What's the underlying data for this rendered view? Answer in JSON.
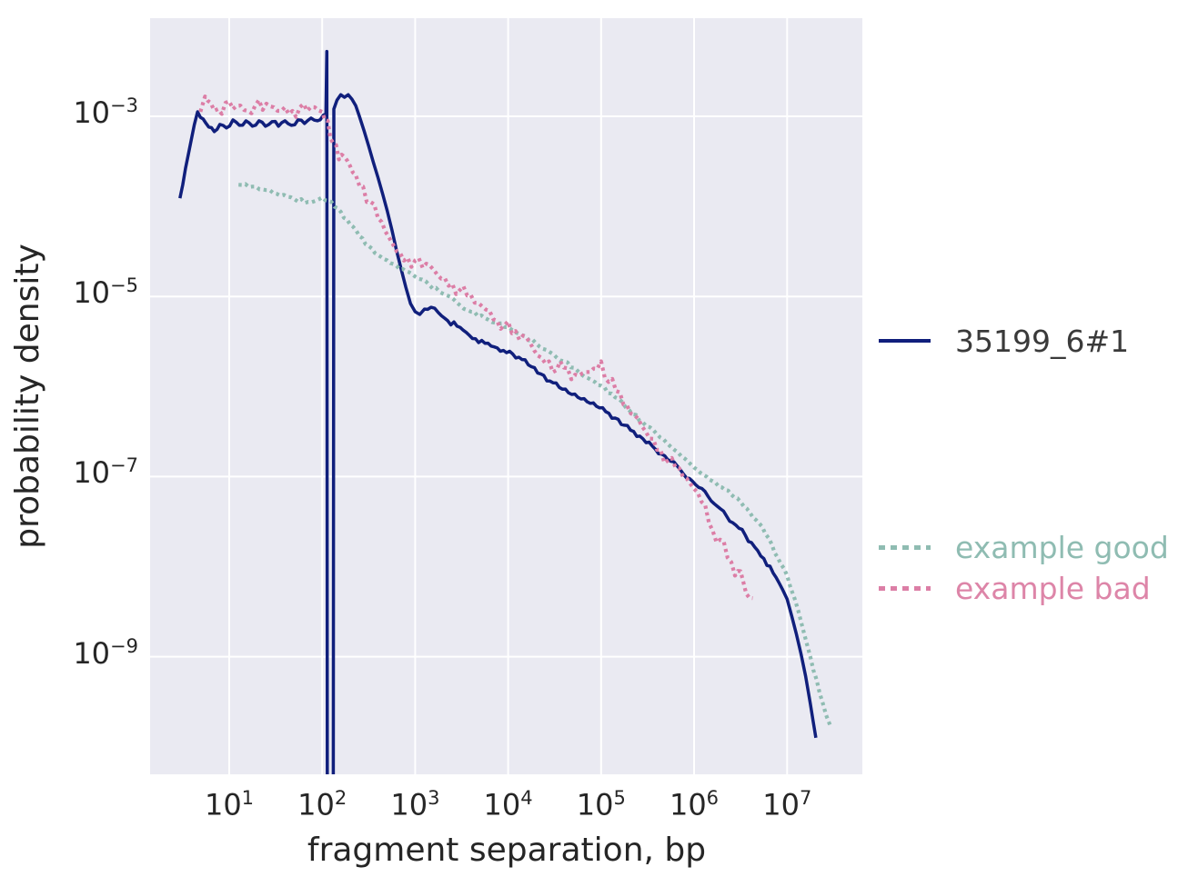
{
  "chart_data": {
    "type": "line",
    "title": "",
    "xlabel": "fragment separation, bp",
    "ylabel": "probability density",
    "x_scale": "log",
    "y_scale": "log",
    "xlim": [
      1.41,
      64500000
    ],
    "ylim": [
      4.95e-11,
      0.01228
    ],
    "grid": true,
    "grid_color": "#ffffff",
    "background_color": "#eaeaf2",
    "tick_color": "#262626",
    "tick_base": "10",
    "x_tick_exponents": [
      1,
      2,
      3,
      4,
      5,
      6,
      7
    ],
    "y_tick_exponents": [
      -3,
      -5,
      -7,
      -9
    ],
    "legend_position": "right",
    "series": [
      {
        "name": "35199_6#1",
        "color": "#101f7c",
        "legend_text_color": "#3a3a3a",
        "style": "solid",
        "line_width": 3.5,
        "noise_log10": 0.028,
        "points_log10": [
          [
            0.47,
            -3.91
          ],
          [
            0.53,
            -3.58
          ],
          [
            0.59,
            -3.27
          ],
          [
            0.66,
            -2.95
          ],
          [
            0.72,
            -3.03
          ],
          [
            0.78,
            -3.12
          ],
          [
            0.84,
            -3.17
          ],
          [
            0.9,
            -3.09
          ],
          [
            0.97,
            -3.13
          ],
          [
            1.04,
            -3.04
          ],
          [
            1.11,
            -3.1
          ],
          [
            1.18,
            -3.05
          ],
          [
            1.25,
            -3.11
          ],
          [
            1.32,
            -3.05
          ],
          [
            1.39,
            -3.11
          ],
          [
            1.46,
            -3.06
          ],
          [
            1.53,
            -3.11
          ],
          [
            1.6,
            -3.05
          ],
          [
            1.67,
            -3.1
          ],
          [
            1.74,
            -3.04
          ],
          [
            1.81,
            -3.08
          ],
          [
            1.88,
            -3.02
          ],
          [
            1.95,
            -3.05
          ],
          [
            2.01,
            -2.99
          ],
          [
            2.04,
            -2.97
          ],
          [
            2.05,
            -2.28
          ],
          [
            2.055,
            -10.4
          ],
          [
            2.12,
            -10.4
          ],
          [
            2.125,
            -2.92
          ],
          [
            2.16,
            -2.82
          ],
          [
            2.2,
            -2.76
          ],
          [
            2.24,
            -2.79
          ],
          [
            2.28,
            -2.76
          ],
          [
            2.32,
            -2.81
          ],
          [
            2.36,
            -2.88
          ],
          [
            2.4,
            -3.0
          ],
          [
            2.45,
            -3.16
          ],
          [
            2.5,
            -3.33
          ],
          [
            2.55,
            -3.51
          ],
          [
            2.6,
            -3.68
          ],
          [
            2.65,
            -3.86
          ],
          [
            2.7,
            -4.05
          ],
          [
            2.75,
            -4.26
          ],
          [
            2.8,
            -4.49
          ],
          [
            2.85,
            -4.7
          ],
          [
            2.9,
            -4.9
          ],
          [
            2.95,
            -5.08
          ],
          [
            3.0,
            -5.17
          ],
          [
            3.05,
            -5.2
          ],
          [
            3.1,
            -5.14
          ],
          [
            3.17,
            -5.12
          ],
          [
            3.25,
            -5.18
          ],
          [
            3.35,
            -5.27
          ],
          [
            3.45,
            -5.33
          ],
          [
            3.55,
            -5.4
          ],
          [
            3.65,
            -5.47
          ],
          [
            3.75,
            -5.52
          ],
          [
            3.85,
            -5.56
          ],
          [
            3.95,
            -5.6
          ],
          [
            4.05,
            -5.64
          ],
          [
            4.15,
            -5.7
          ],
          [
            4.25,
            -5.78
          ],
          [
            4.35,
            -5.86
          ],
          [
            4.45,
            -5.94
          ],
          [
            4.55,
            -6.01
          ],
          [
            4.65,
            -6.07
          ],
          [
            4.75,
            -6.12
          ],
          [
            4.85,
            -6.17
          ],
          [
            4.95,
            -6.22
          ],
          [
            5.05,
            -6.28
          ],
          [
            5.15,
            -6.35
          ],
          [
            5.25,
            -6.43
          ],
          [
            5.35,
            -6.5
          ],
          [
            5.45,
            -6.58
          ],
          [
            5.55,
            -6.66
          ],
          [
            5.65,
            -6.75
          ],
          [
            5.75,
            -6.83
          ],
          [
            5.85,
            -6.92
          ],
          [
            5.95,
            -7.02
          ],
          [
            6.05,
            -7.12
          ],
          [
            6.15,
            -7.22
          ],
          [
            6.25,
            -7.33
          ],
          [
            6.35,
            -7.44
          ],
          [
            6.45,
            -7.54
          ],
          [
            6.55,
            -7.65
          ],
          [
            6.65,
            -7.78
          ],
          [
            6.75,
            -7.91
          ],
          [
            6.85,
            -8.07
          ],
          [
            6.95,
            -8.25
          ],
          [
            7.0,
            -8.36
          ],
          [
            7.05,
            -8.55
          ],
          [
            7.1,
            -8.75
          ],
          [
            7.15,
            -8.97
          ],
          [
            7.2,
            -9.22
          ],
          [
            7.25,
            -9.52
          ],
          [
            7.31,
            -9.9
          ]
        ]
      },
      {
        "name": "example good",
        "color": "#8fbcb2",
        "legend_text_color": "#8fbcb2",
        "style": "dotted",
        "line_width": 4.2,
        "noise_log10": 0.02,
        "points_log10": [
          [
            1.1,
            -3.76
          ],
          [
            1.25,
            -3.78
          ],
          [
            1.4,
            -3.82
          ],
          [
            1.55,
            -3.88
          ],
          [
            1.7,
            -3.92
          ],
          [
            1.85,
            -3.95
          ],
          [
            2.0,
            -3.9
          ],
          [
            2.1,
            -3.95
          ],
          [
            2.2,
            -4.06
          ],
          [
            2.3,
            -4.2
          ],
          [
            2.4,
            -4.33
          ],
          [
            2.5,
            -4.44
          ],
          [
            2.6,
            -4.54
          ],
          [
            2.7,
            -4.6
          ],
          [
            2.8,
            -4.66
          ],
          [
            2.9,
            -4.72
          ],
          [
            3.0,
            -4.78
          ],
          [
            3.15,
            -4.87
          ],
          [
            3.3,
            -4.97
          ],
          [
            3.45,
            -5.07
          ],
          [
            3.6,
            -5.17
          ],
          [
            3.75,
            -5.24
          ],
          [
            3.9,
            -5.3
          ],
          [
            4.0,
            -5.34
          ],
          [
            4.15,
            -5.43
          ],
          [
            4.3,
            -5.52
          ],
          [
            4.45,
            -5.62
          ],
          [
            4.6,
            -5.72
          ],
          [
            4.75,
            -5.83
          ],
          [
            4.9,
            -5.93
          ],
          [
            5.0,
            -5.99
          ],
          [
            5.15,
            -6.12
          ],
          [
            5.3,
            -6.26
          ],
          [
            5.45,
            -6.4
          ],
          [
            5.6,
            -6.53
          ],
          [
            5.75,
            -6.67
          ],
          [
            5.9,
            -6.8
          ],
          [
            6.0,
            -6.9
          ],
          [
            6.1,
            -6.98
          ],
          [
            6.2,
            -7.05
          ],
          [
            6.3,
            -7.12
          ],
          [
            6.4,
            -7.2
          ],
          [
            6.5,
            -7.28
          ],
          [
            6.6,
            -7.4
          ],
          [
            6.7,
            -7.52
          ],
          [
            6.8,
            -7.68
          ],
          [
            6.9,
            -7.9
          ],
          [
            7.0,
            -8.1
          ],
          [
            7.08,
            -8.35
          ],
          [
            7.16,
            -8.65
          ],
          [
            7.25,
            -9.0
          ],
          [
            7.35,
            -9.4
          ],
          [
            7.42,
            -9.65
          ],
          [
            7.47,
            -9.78
          ]
        ]
      },
      {
        "name": "example bad",
        "color": "#dc7ea6",
        "legend_text_color": "#dd85a8",
        "style": "dotted",
        "line_width": 4.2,
        "noise_log10": 0.09,
        "points_log10": [
          [
            0.69,
            -2.95
          ],
          [
            0.74,
            -2.78
          ],
          [
            0.8,
            -2.85
          ],
          [
            0.88,
            -2.92
          ],
          [
            0.96,
            -2.85
          ],
          [
            1.04,
            -2.92
          ],
          [
            1.12,
            -2.88
          ],
          [
            1.2,
            -2.94
          ],
          [
            1.28,
            -2.88
          ],
          [
            1.36,
            -2.93
          ],
          [
            1.44,
            -2.89
          ],
          [
            1.52,
            -2.94
          ],
          [
            1.6,
            -2.9
          ],
          [
            1.68,
            -2.94
          ],
          [
            1.76,
            -2.9
          ],
          [
            1.84,
            -2.94
          ],
          [
            1.92,
            -2.9
          ],
          [
            2.0,
            -2.95
          ],
          [
            2.06,
            -3.05
          ],
          [
            2.12,
            -3.3
          ],
          [
            2.18,
            -3.48
          ],
          [
            2.24,
            -3.45
          ],
          [
            2.3,
            -3.55
          ],
          [
            2.36,
            -3.65
          ],
          [
            2.44,
            -3.78
          ],
          [
            2.52,
            -3.95
          ],
          [
            2.6,
            -4.13
          ],
          [
            2.68,
            -4.28
          ],
          [
            2.76,
            -4.42
          ],
          [
            2.84,
            -4.52
          ],
          [
            2.92,
            -4.57
          ],
          [
            3.0,
            -4.6
          ],
          [
            3.08,
            -4.68
          ],
          [
            3.16,
            -4.66
          ],
          [
            3.24,
            -4.76
          ],
          [
            3.32,
            -4.8
          ],
          [
            3.4,
            -4.86
          ],
          [
            3.48,
            -4.93
          ],
          [
            3.56,
            -4.99
          ],
          [
            3.64,
            -5.07
          ],
          [
            3.72,
            -5.11
          ],
          [
            3.8,
            -5.16
          ],
          [
            3.88,
            -5.27
          ],
          [
            3.96,
            -5.32
          ],
          [
            4.04,
            -5.41
          ],
          [
            4.12,
            -5.48
          ],
          [
            4.2,
            -5.46
          ],
          [
            4.28,
            -5.6
          ],
          [
            4.36,
            -5.68
          ],
          [
            4.44,
            -5.72
          ],
          [
            4.52,
            -5.82
          ],
          [
            4.6,
            -5.79
          ],
          [
            4.68,
            -5.92
          ],
          [
            4.76,
            -5.88
          ],
          [
            4.84,
            -5.84
          ],
          [
            4.92,
            -5.8
          ],
          [
            5.0,
            -5.72
          ],
          [
            5.08,
            -5.95
          ],
          [
            5.16,
            -6.05
          ],
          [
            5.24,
            -6.2
          ],
          [
            5.32,
            -6.3
          ],
          [
            5.4,
            -6.36
          ],
          [
            5.48,
            -6.5
          ],
          [
            5.56,
            -6.58
          ],
          [
            5.64,
            -6.7
          ],
          [
            5.72,
            -6.82
          ],
          [
            5.8,
            -6.9
          ],
          [
            5.88,
            -7.0
          ],
          [
            5.96,
            -7.08
          ],
          [
            6.04,
            -7.18
          ],
          [
            6.12,
            -7.32
          ],
          [
            6.2,
            -7.6
          ],
          [
            6.28,
            -7.7
          ],
          [
            6.36,
            -7.9
          ],
          [
            6.44,
            -8.1
          ],
          [
            6.5,
            -8.05
          ],
          [
            6.56,
            -8.3
          ],
          [
            6.63,
            -8.35
          ]
        ]
      }
    ]
  }
}
